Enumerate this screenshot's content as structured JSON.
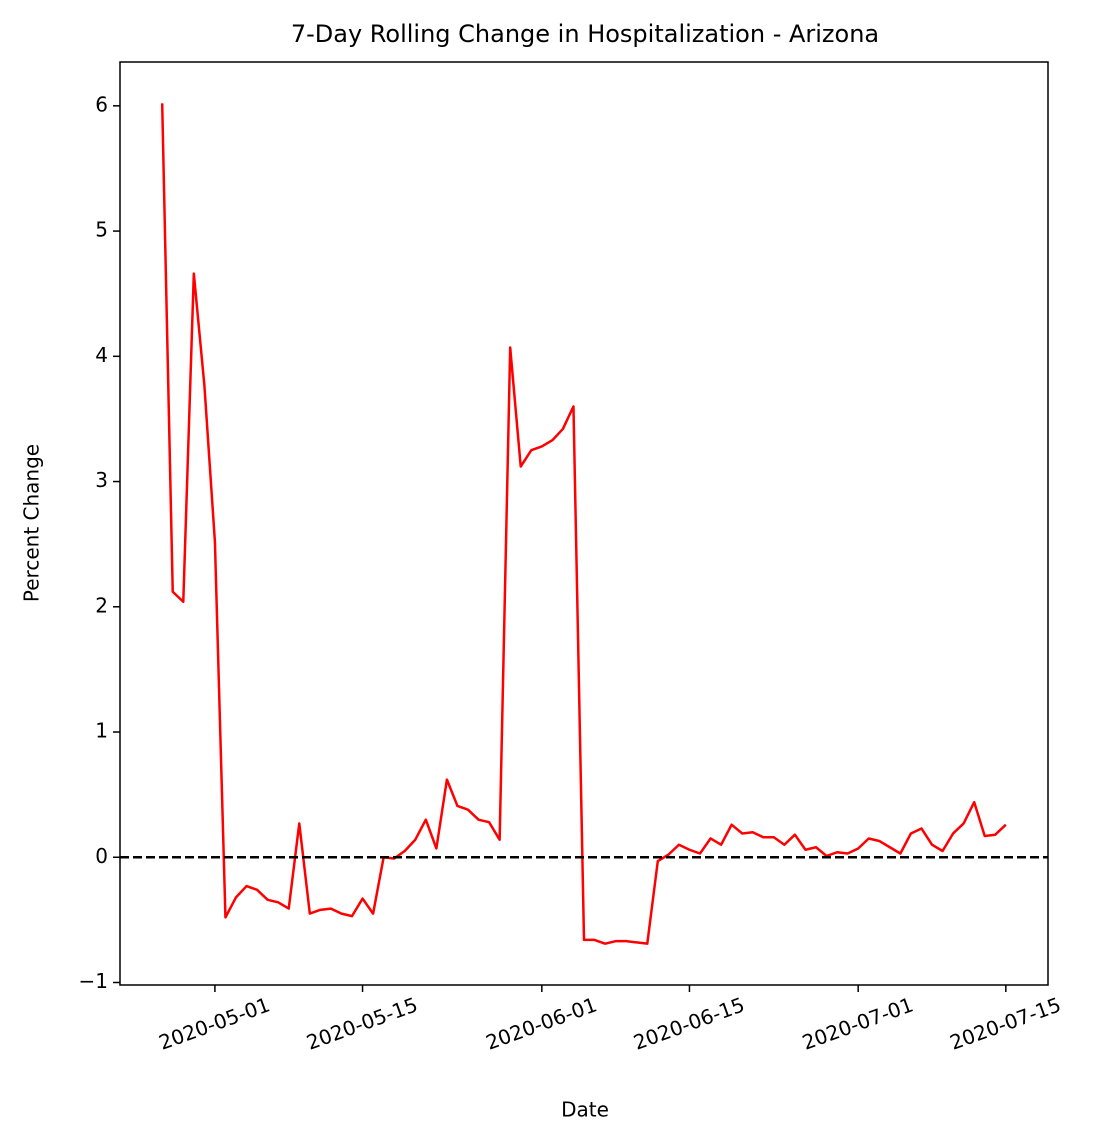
{
  "chart_data": {
    "type": "line",
    "title": "7-Day Rolling Change in Hospitalization - Arizona",
    "xlabel": "Date",
    "ylabel": "Percent Change",
    "x": [
      "2020-04-26",
      "2020-04-27",
      "2020-04-28",
      "2020-04-29",
      "2020-04-30",
      "2020-05-01",
      "2020-05-02",
      "2020-05-03",
      "2020-05-04",
      "2020-05-05",
      "2020-05-06",
      "2020-05-07",
      "2020-05-08",
      "2020-05-09",
      "2020-05-10",
      "2020-05-11",
      "2020-05-12",
      "2020-05-13",
      "2020-05-14",
      "2020-05-15",
      "2020-05-16",
      "2020-05-17",
      "2020-05-18",
      "2020-05-19",
      "2020-05-20",
      "2020-05-21",
      "2020-05-22",
      "2020-05-23",
      "2020-05-24",
      "2020-05-25",
      "2020-05-26",
      "2020-05-27",
      "2020-05-28",
      "2020-05-29",
      "2020-05-30",
      "2020-05-31",
      "2020-06-01",
      "2020-06-02",
      "2020-06-03",
      "2020-06-04",
      "2020-06-05",
      "2020-06-06",
      "2020-06-07",
      "2020-06-08",
      "2020-06-09",
      "2020-06-10",
      "2020-06-11",
      "2020-06-12",
      "2020-06-13",
      "2020-06-14",
      "2020-06-15",
      "2020-06-16",
      "2020-06-17",
      "2020-06-18",
      "2020-06-19",
      "2020-06-20",
      "2020-06-21",
      "2020-06-22",
      "2020-06-23",
      "2020-06-24",
      "2020-06-25",
      "2020-06-26",
      "2020-06-27",
      "2020-06-28",
      "2020-06-29",
      "2020-06-30",
      "2020-07-01",
      "2020-07-02",
      "2020-07-03",
      "2020-07-04",
      "2020-07-05",
      "2020-07-06",
      "2020-07-07",
      "2020-07-08",
      "2020-07-09",
      "2020-07-10",
      "2020-07-11",
      "2020-07-12",
      "2020-07-13",
      "2020-07-14",
      "2020-07-15"
    ],
    "series": [
      {
        "name": "Percent Change",
        "color": "#ff0000",
        "values": [
          6.02,
          2.12,
          2.04,
          4.66,
          3.77,
          2.52,
          -0.48,
          -0.32,
          -0.23,
          -0.26,
          -0.34,
          -0.36,
          -0.41,
          0.27,
          -0.45,
          -0.42,
          -0.41,
          -0.45,
          -0.47,
          -0.33,
          -0.45,
          0.0,
          -0.01,
          0.05,
          0.14,
          0.3,
          0.07,
          0.62,
          0.41,
          0.38,
          0.3,
          0.28,
          0.14,
          4.07,
          3.12,
          3.25,
          3.28,
          3.33,
          3.42,
          3.6,
          -0.66,
          -0.66,
          -0.69,
          -0.67,
          -0.67,
          -0.68,
          -0.69,
          -0.03,
          0.02,
          0.1,
          0.06,
          0.03,
          0.15,
          0.1,
          0.26,
          0.19,
          0.2,
          0.16,
          0.16,
          0.1,
          0.18,
          0.06,
          0.08,
          0.01,
          0.04,
          0.03,
          0.07,
          0.15,
          0.13,
          0.08,
          0.03,
          0.19,
          0.23,
          0.1,
          0.05,
          0.19,
          0.27,
          0.44,
          0.17,
          0.18,
          0.26
        ]
      }
    ],
    "hline": {
      "value": 0,
      "color": "#000000",
      "dashed": true
    },
    "xlim": [
      "2020-04-22",
      "2020-07-19"
    ],
    "xticks": [
      "2020-05-01",
      "2020-05-15",
      "2020-06-01",
      "2020-06-15",
      "2020-07-01",
      "2020-07-15"
    ],
    "ylim": [
      -1.02,
      6.35
    ],
    "yticks": [
      {
        "value": -1,
        "label": "−1"
      },
      0,
      1,
      2,
      3,
      4,
      5,
      6
    ],
    "grid": false
  }
}
